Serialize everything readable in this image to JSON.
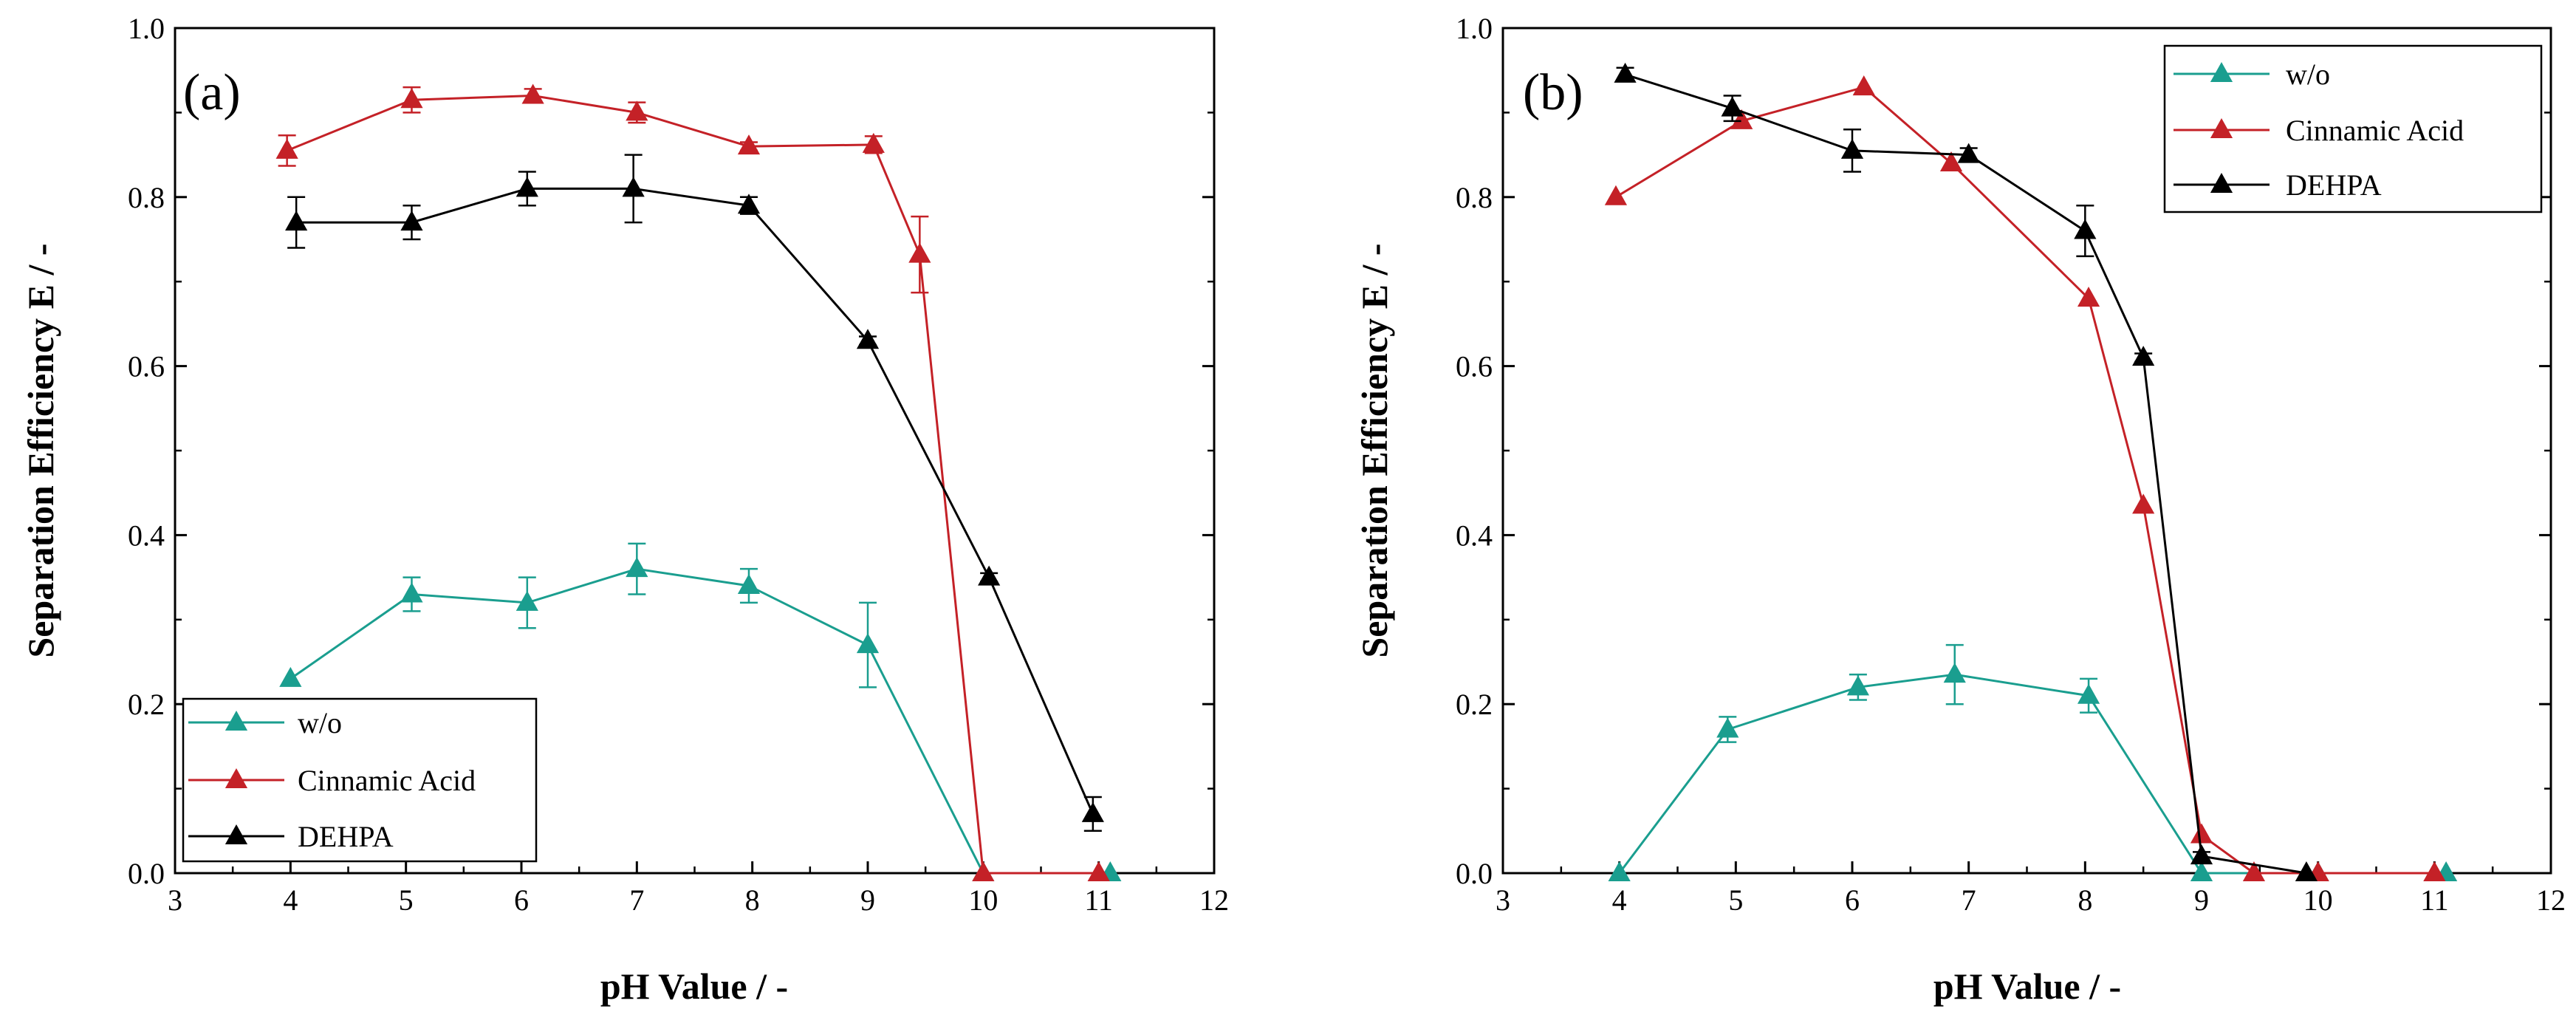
{
  "chart_data": [
    {
      "type": "line",
      "panel_label": "(a)",
      "xlabel": "pH Value / -",
      "ylabel": "Separation Efficiency E / -",
      "xlim": [
        3,
        12
      ],
      "ylim": [
        0,
        1.0
      ],
      "x_ticks": [
        "3",
        "4",
        "5",
        "6",
        "7",
        "8",
        "9",
        "10",
        "11",
        "12"
      ],
      "y_ticks": [
        "0.0",
        "0.2",
        "0.4",
        "0.6",
        "0.8",
        "1.0"
      ],
      "legend_position": "bottom-left",
      "series": [
        {
          "name": "w/o",
          "color": "#1a9e8f",
          "x": [
            4.0,
            5.05,
            6.05,
            7.0,
            7.97,
            9.0,
            10.0,
            11.1
          ],
          "y": [
            0.23,
            0.33,
            0.32,
            0.36,
            0.34,
            0.27,
            0.0,
            0.0
          ],
          "err": [
            0,
            0.02,
            0.03,
            0.03,
            0.02,
            0.05,
            0,
            0
          ]
        },
        {
          "name": "Cinnamic Acid",
          "color": "#c42127",
          "x": [
            3.97,
            5.05,
            6.1,
            7.0,
            7.97,
            9.05,
            9.45,
            10.0,
            11.0
          ],
          "y": [
            0.855,
            0.915,
            0.92,
            0.9,
            0.86,
            0.862,
            0.732,
            0.0,
            0.0
          ],
          "err": [
            0.018,
            0.015,
            0.008,
            0.012,
            0.005,
            0.01,
            0.045,
            0,
            0
          ]
        },
        {
          "name": "DEHPA",
          "color": "#000000",
          "x": [
            4.05,
            5.05,
            6.05,
            6.97,
            7.97,
            9.0,
            10.05,
            10.95
          ],
          "y": [
            0.77,
            0.77,
            0.81,
            0.81,
            0.79,
            0.63,
            0.35,
            0.07
          ],
          "err": [
            0.03,
            0.02,
            0.02,
            0.04,
            0.01,
            0.005,
            0.005,
            0.02
          ]
        }
      ]
    },
    {
      "type": "line",
      "panel_label": "(b)",
      "xlabel": "pH Value / -",
      "ylabel": "Separation Efficiency E / -",
      "xlim": [
        3,
        12
      ],
      "ylim": [
        0,
        1.0
      ],
      "x_ticks": [
        "3",
        "4",
        "5",
        "6",
        "7",
        "8",
        "9",
        "10",
        "11",
        "12"
      ],
      "y_ticks": [
        "0.0",
        "0.2",
        "0.4",
        "0.6",
        "0.8",
        "1.0"
      ],
      "legend_position": "top-right",
      "series": [
        {
          "name": "w/o",
          "color": "#1a9e8f",
          "x": [
            4.0,
            4.93,
            6.05,
            6.88,
            8.03,
            9.0,
            10.0,
            11.1
          ],
          "y": [
            0.0,
            0.17,
            0.22,
            0.235,
            0.21,
            0.0,
            0.0,
            0.0
          ],
          "err": [
            0,
            0.015,
            0.015,
            0.035,
            0.02,
            0,
            0,
            0
          ]
        },
        {
          "name": "Cinnamic Acid",
          "color": "#c42127",
          "x": [
            3.97,
            5.05,
            6.1,
            6.85,
            8.03,
            8.5,
            9.0,
            9.45,
            10.0,
            11.0
          ],
          "y": [
            0.8,
            0.89,
            0.93,
            0.84,
            0.68,
            0.435,
            0.045,
            0.0,
            0.0,
            0.0
          ],
          "err": [
            0,
            0,
            0,
            0,
            0,
            0,
            0,
            0,
            0,
            0
          ]
        },
        {
          "name": "DEHPA",
          "color": "#000000",
          "x": [
            4.05,
            4.97,
            6.0,
            7.0,
            8.0,
            8.5,
            9.0,
            9.9
          ],
          "y": [
            0.945,
            0.905,
            0.855,
            0.85,
            0.76,
            0.61,
            0.02,
            0.0
          ],
          "err": [
            0.008,
            0.015,
            0.025,
            0.008,
            0.03,
            0.005,
            0.005,
            0
          ]
        }
      ]
    }
  ]
}
